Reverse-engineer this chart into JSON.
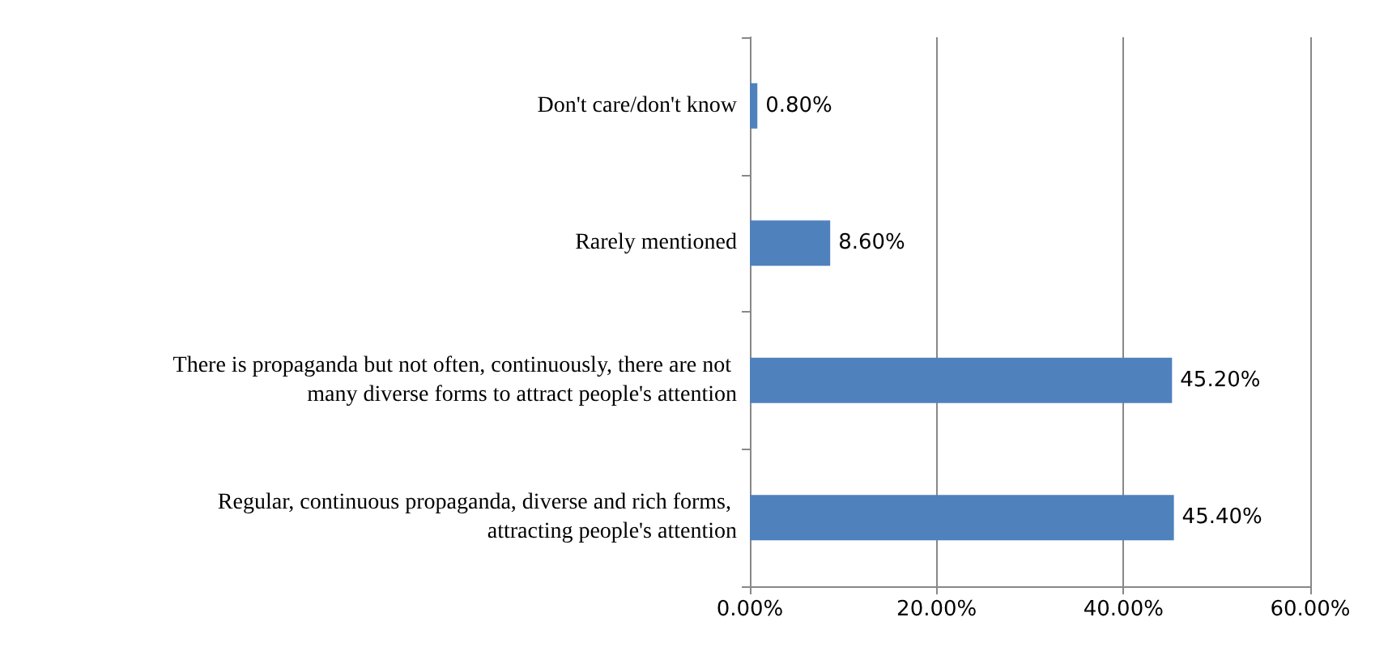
{
  "chart_data": {
    "type": "bar",
    "orientation": "horizontal",
    "categories": [
      "Don't care/don't know",
      "Rarely mentioned",
      "There is propaganda but not often, continuously, there are not many diverse forms to attract people's attention",
      "Regular, continuous propaganda, diverse and rich forms, attracting people's attention"
    ],
    "values": [
      0.8,
      8.6,
      45.2,
      45.4
    ],
    "value_labels": [
      "0.80%",
      "8.60%",
      "45.20%",
      "45.40%"
    ],
    "color": "#4f81bd",
    "xlim": [
      0,
      60
    ],
    "xticks": [
      {
        "value": 0,
        "label": "0.00%"
      },
      {
        "value": 20,
        "label": "20.00%"
      },
      {
        "value": 40,
        "label": "40.00%"
      },
      {
        "value": 60,
        "label": "60.00%"
      }
    ],
    "grid": "x"
  }
}
